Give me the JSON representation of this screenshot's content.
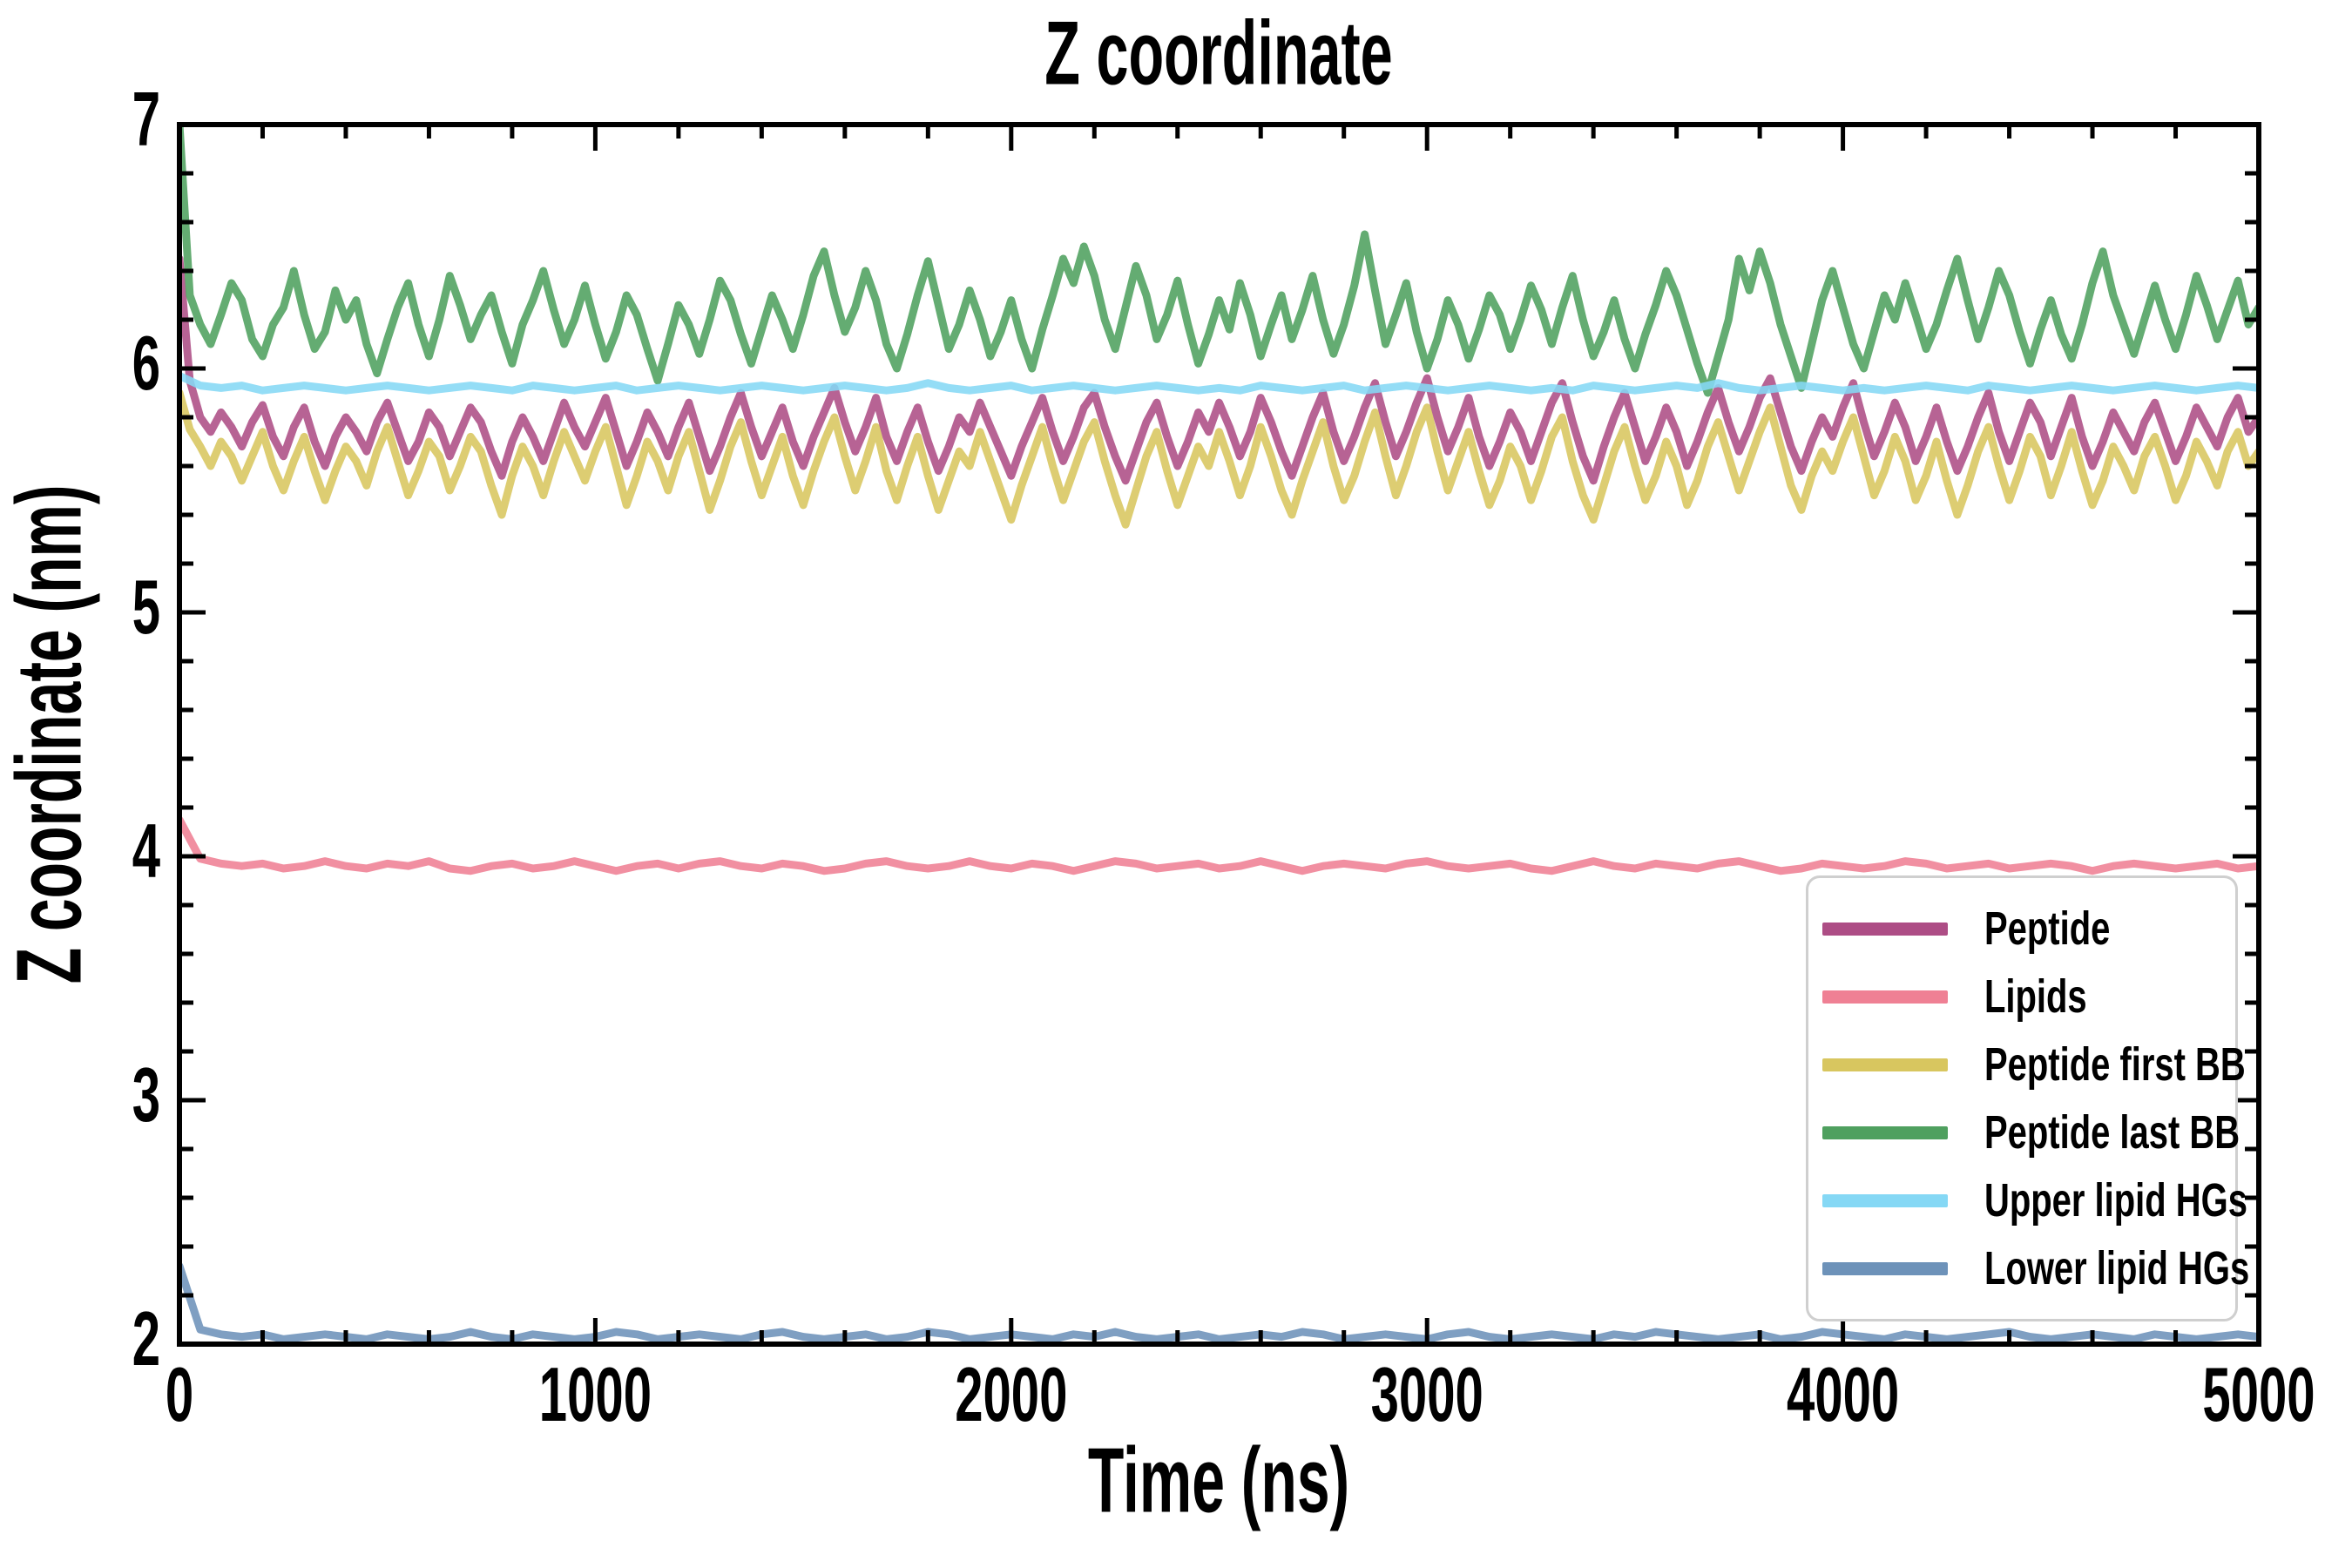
{
  "chart_data": {
    "type": "line",
    "title": "Z coordinate",
    "xlabel": "Time (ns)",
    "ylabel": "Z coordinate (nm)",
    "xlim": [
      0,
      5000
    ],
    "ylim": [
      2,
      7
    ],
    "xticks": [
      0,
      1000,
      2000,
      3000,
      4000,
      5000
    ],
    "xtick_labels": [
      "0",
      "1000",
      "2000",
      "3000",
      "4000",
      "5000"
    ],
    "yticks": [
      2,
      3,
      4,
      5,
      6,
      7
    ],
    "ytick_labels": [
      "2",
      "3",
      "4",
      "5",
      "6",
      "7"
    ],
    "x_minor_step": 200,
    "y_minor_step": 0.2,
    "grid": false,
    "legend_position": "lower right",
    "series": [
      {
        "id": "peptide",
        "name": "Peptide",
        "color": "#ad4d85",
        "x0": 0,
        "dx": 25,
        "values": [
          6.45,
          5.95,
          5.8,
          5.74,
          5.82,
          5.76,
          5.68,
          5.78,
          5.85,
          5.72,
          5.64,
          5.76,
          5.84,
          5.7,
          5.6,
          5.72,
          5.8,
          5.74,
          5.66,
          5.78,
          5.86,
          5.74,
          5.62,
          5.7,
          5.82,
          5.76,
          5.64,
          5.74,
          5.84,
          5.78,
          5.66,
          5.56,
          5.7,
          5.8,
          5.72,
          5.62,
          5.74,
          5.86,
          5.76,
          5.68,
          5.78,
          5.88,
          5.74,
          5.6,
          5.7,
          5.82,
          5.74,
          5.64,
          5.76,
          5.86,
          5.72,
          5.58,
          5.68,
          5.8,
          5.9,
          5.76,
          5.64,
          5.74,
          5.84,
          5.7,
          5.6,
          5.72,
          5.82,
          5.92,
          5.78,
          5.66,
          5.76,
          5.88,
          5.72,
          5.62,
          5.74,
          5.84,
          5.7,
          5.58,
          5.68,
          5.8,
          5.74,
          5.86,
          5.76,
          5.66,
          5.56,
          5.68,
          5.78,
          5.88,
          5.74,
          5.62,
          5.72,
          5.84,
          5.9,
          5.76,
          5.64,
          5.54,
          5.66,
          5.78,
          5.86,
          5.72,
          5.6,
          5.7,
          5.82,
          5.74,
          5.86,
          5.76,
          5.64,
          5.74,
          5.88,
          5.78,
          5.66,
          5.56,
          5.68,
          5.8,
          5.9,
          5.74,
          5.62,
          5.72,
          5.84,
          5.94,
          5.78,
          5.64,
          5.74,
          5.86,
          5.96,
          5.8,
          5.66,
          5.76,
          5.88,
          5.72,
          5.6,
          5.7,
          5.82,
          5.74,
          5.62,
          5.74,
          5.86,
          5.94,
          5.78,
          5.64,
          5.54,
          5.68,
          5.8,
          5.9,
          5.76,
          5.62,
          5.72,
          5.84,
          5.74,
          5.6,
          5.7,
          5.82,
          5.92,
          5.78,
          5.66,
          5.76,
          5.88,
          5.96,
          5.82,
          5.68,
          5.58,
          5.7,
          5.8,
          5.72,
          5.84,
          5.94,
          5.78,
          5.64,
          5.74,
          5.86,
          5.76,
          5.62,
          5.72,
          5.84,
          5.7,
          5.58,
          5.68,
          5.8,
          5.9,
          5.74,
          5.62,
          5.74,
          5.86,
          5.78,
          5.64,
          5.76,
          5.88,
          5.72,
          5.6,
          5.7,
          5.82,
          5.74,
          5.66,
          5.78,
          5.86,
          5.74,
          5.62,
          5.72,
          5.84,
          5.76,
          5.68,
          5.8,
          5.88,
          5.74,
          5.8
        ]
      },
      {
        "id": "lipids",
        "name": "Lipids",
        "color": "#ef8094",
        "x0": 0,
        "dx": 50,
        "values": [
          4.15,
          3.99,
          3.97,
          3.96,
          3.97,
          3.95,
          3.96,
          3.98,
          3.96,
          3.95,
          3.97,
          3.96,
          3.98,
          3.95,
          3.94,
          3.96,
          3.97,
          3.95,
          3.96,
          3.98,
          3.96,
          3.94,
          3.96,
          3.97,
          3.95,
          3.97,
          3.98,
          3.96,
          3.95,
          3.97,
          3.96,
          3.94,
          3.95,
          3.97,
          3.98,
          3.96,
          3.95,
          3.96,
          3.98,
          3.96,
          3.95,
          3.97,
          3.96,
          3.94,
          3.96,
          3.98,
          3.97,
          3.95,
          3.96,
          3.97,
          3.95,
          3.96,
          3.98,
          3.96,
          3.94,
          3.96,
          3.97,
          3.96,
          3.95,
          3.97,
          3.98,
          3.96,
          3.95,
          3.96,
          3.97,
          3.95,
          3.94,
          3.96,
          3.98,
          3.96,
          3.95,
          3.97,
          3.96,
          3.95,
          3.97,
          3.98,
          3.96,
          3.94,
          3.95,
          3.97,
          3.96,
          3.95,
          3.96,
          3.98,
          3.97,
          3.95,
          3.96,
          3.97,
          3.95,
          3.96,
          3.97,
          3.96,
          3.94,
          3.96,
          3.97,
          3.96,
          3.95,
          3.96,
          3.97,
          3.95,
          3.96
        ]
      },
      {
        "id": "peptide-first-bb",
        "name": "Peptide first BB",
        "color": "#d8c65f",
        "x0": 0,
        "dx": 25,
        "values": [
          5.9,
          5.75,
          5.68,
          5.6,
          5.7,
          5.64,
          5.54,
          5.64,
          5.74,
          5.6,
          5.5,
          5.62,
          5.72,
          5.58,
          5.46,
          5.58,
          5.68,
          5.62,
          5.52,
          5.66,
          5.76,
          5.62,
          5.48,
          5.58,
          5.7,
          5.64,
          5.5,
          5.6,
          5.72,
          5.66,
          5.52,
          5.4,
          5.56,
          5.68,
          5.6,
          5.48,
          5.62,
          5.74,
          5.64,
          5.54,
          5.66,
          5.76,
          5.6,
          5.44,
          5.56,
          5.7,
          5.62,
          5.5,
          5.64,
          5.74,
          5.58,
          5.42,
          5.54,
          5.68,
          5.78,
          5.62,
          5.48,
          5.6,
          5.72,
          5.56,
          5.44,
          5.58,
          5.7,
          5.8,
          5.64,
          5.5,
          5.62,
          5.76,
          5.58,
          5.46,
          5.6,
          5.72,
          5.56,
          5.42,
          5.54,
          5.66,
          5.6,
          5.74,
          5.62,
          5.5,
          5.38,
          5.52,
          5.64,
          5.76,
          5.6,
          5.46,
          5.58,
          5.7,
          5.78,
          5.62,
          5.48,
          5.36,
          5.5,
          5.64,
          5.74,
          5.58,
          5.44,
          5.56,
          5.68,
          5.6,
          5.74,
          5.62,
          5.48,
          5.6,
          5.76,
          5.64,
          5.5,
          5.4,
          5.54,
          5.66,
          5.78,
          5.6,
          5.46,
          5.56,
          5.7,
          5.82,
          5.64,
          5.48,
          5.6,
          5.74,
          5.84,
          5.66,
          5.5,
          5.62,
          5.74,
          5.58,
          5.44,
          5.54,
          5.68,
          5.6,
          5.46,
          5.58,
          5.72,
          5.8,
          5.62,
          5.48,
          5.38,
          5.52,
          5.66,
          5.76,
          5.6,
          5.46,
          5.56,
          5.7,
          5.6,
          5.44,
          5.54,
          5.68,
          5.78,
          5.64,
          5.5,
          5.62,
          5.74,
          5.84,
          5.68,
          5.52,
          5.42,
          5.56,
          5.66,
          5.58,
          5.7,
          5.8,
          5.64,
          5.48,
          5.58,
          5.72,
          5.62,
          5.46,
          5.56,
          5.7,
          5.54,
          5.4,
          5.52,
          5.66,
          5.76,
          5.6,
          5.46,
          5.58,
          5.72,
          5.64,
          5.48,
          5.6,
          5.74,
          5.58,
          5.44,
          5.54,
          5.68,
          5.6,
          5.5,
          5.64,
          5.72,
          5.6,
          5.46,
          5.56,
          5.7,
          5.62,
          5.52,
          5.66,
          5.74,
          5.6,
          5.66
        ]
      },
      {
        "id": "peptide-last-bb",
        "name": "Peptide last BB",
        "color": "#4fa05f",
        "x0": 0,
        "dx": 25,
        "values": [
          7.0,
          6.3,
          6.18,
          6.1,
          6.22,
          6.35,
          6.28,
          6.12,
          6.05,
          6.18,
          6.25,
          6.4,
          6.22,
          6.08,
          6.15,
          6.32,
          6.2,
          6.28,
          6.1,
          5.98,
          6.12,
          6.25,
          6.35,
          6.18,
          6.05,
          6.2,
          6.38,
          6.26,
          6.12,
          6.22,
          6.3,
          6.15,
          6.02,
          6.18,
          6.28,
          6.4,
          6.24,
          6.1,
          6.2,
          6.34,
          6.18,
          6.04,
          6.15,
          6.3,
          6.22,
          6.08,
          5.95,
          6.1,
          6.26,
          6.18,
          6.06,
          6.2,
          6.36,
          6.28,
          6.14,
          6.02,
          6.16,
          6.3,
          6.2,
          6.08,
          6.22,
          6.38,
          6.48,
          6.3,
          6.15,
          6.25,
          6.4,
          6.28,
          6.1,
          6.0,
          6.14,
          6.3,
          6.44,
          6.26,
          6.08,
          6.18,
          6.32,
          6.2,
          6.05,
          6.15,
          6.28,
          6.12,
          6.0,
          6.16,
          6.3,
          6.45,
          6.35,
          6.5,
          6.38,
          6.2,
          6.08,
          6.25,
          6.42,
          6.3,
          6.12,
          6.22,
          6.36,
          6.18,
          6.02,
          6.14,
          6.28,
          6.16,
          6.35,
          6.22,
          6.05,
          6.18,
          6.3,
          6.12,
          6.24,
          6.38,
          6.2,
          6.06,
          6.18,
          6.34,
          6.55,
          6.32,
          6.1,
          6.22,
          6.35,
          6.15,
          6.0,
          6.12,
          6.28,
          6.18,
          6.04,
          6.16,
          6.3,
          6.22,
          6.08,
          6.2,
          6.34,
          6.24,
          6.1,
          6.25,
          6.38,
          6.2,
          6.05,
          6.15,
          6.28,
          6.12,
          6.0,
          6.14,
          6.26,
          6.4,
          6.3,
          6.16,
          6.02,
          5.9,
          6.05,
          6.2,
          6.45,
          6.32,
          6.48,
          6.35,
          6.18,
          6.05,
          5.92,
          6.1,
          6.28,
          6.4,
          6.25,
          6.1,
          6.0,
          6.15,
          6.3,
          6.2,
          6.35,
          6.22,
          6.08,
          6.18,
          6.32,
          6.45,
          6.28,
          6.12,
          6.25,
          6.4,
          6.3,
          6.15,
          6.02,
          6.16,
          6.28,
          6.14,
          6.04,
          6.18,
          6.35,
          6.48,
          6.3,
          6.18,
          6.06,
          6.2,
          6.34,
          6.2,
          6.08,
          6.22,
          6.38,
          6.26,
          6.12,
          6.24,
          6.36,
          6.18,
          6.25
        ]
      },
      {
        "id": "upper-lipid-hgs",
        "name": "Upper lipid HGs",
        "color": "#85d8f5",
        "x0": 0,
        "dx": 50,
        "values": [
          5.97,
          5.93,
          5.92,
          5.93,
          5.91,
          5.92,
          5.93,
          5.92,
          5.91,
          5.92,
          5.93,
          5.92,
          5.91,
          5.92,
          5.93,
          5.92,
          5.91,
          5.93,
          5.92,
          5.91,
          5.92,
          5.93,
          5.91,
          5.92,
          5.93,
          5.92,
          5.91,
          5.92,
          5.93,
          5.92,
          5.91,
          5.92,
          5.93,
          5.92,
          5.91,
          5.92,
          5.94,
          5.92,
          5.91,
          5.92,
          5.93,
          5.91,
          5.92,
          5.93,
          5.92,
          5.91,
          5.92,
          5.93,
          5.92,
          5.91,
          5.92,
          5.91,
          5.93,
          5.92,
          5.91,
          5.92,
          5.93,
          5.91,
          5.92,
          5.93,
          5.92,
          5.91,
          5.92,
          5.93,
          5.92,
          5.91,
          5.92,
          5.91,
          5.93,
          5.92,
          5.91,
          5.92,
          5.93,
          5.92,
          5.94,
          5.92,
          5.91,
          5.92,
          5.93,
          5.92,
          5.91,
          5.92,
          5.91,
          5.92,
          5.93,
          5.92,
          5.91,
          5.93,
          5.92,
          5.91,
          5.92,
          5.93,
          5.92,
          5.91,
          5.92,
          5.93,
          5.92,
          5.91,
          5.92,
          5.93,
          5.92
        ]
      },
      {
        "id": "lower-lipid-hgs",
        "name": "Lower lipid HGs",
        "color": "#6d92b9",
        "x0": 0,
        "dx": 50,
        "values": [
          2.32,
          2.06,
          2.04,
          2.03,
          2.04,
          2.02,
          2.03,
          2.04,
          2.03,
          2.02,
          2.04,
          2.03,
          2.02,
          2.03,
          2.05,
          2.03,
          2.02,
          2.04,
          2.03,
          2.02,
          2.03,
          2.05,
          2.04,
          2.02,
          2.03,
          2.04,
          2.03,
          2.02,
          2.04,
          2.05,
          2.03,
          2.02,
          2.03,
          2.04,
          2.02,
          2.03,
          2.05,
          2.04,
          2.02,
          2.03,
          2.04,
          2.03,
          2.02,
          2.04,
          2.03,
          2.05,
          2.03,
          2.02,
          2.03,
          2.04,
          2.02,
          2.03,
          2.04,
          2.03,
          2.05,
          2.04,
          2.02,
          2.03,
          2.04,
          2.03,
          2.02,
          2.04,
          2.05,
          2.03,
          2.02,
          2.03,
          2.04,
          2.03,
          2.02,
          2.04,
          2.03,
          2.05,
          2.04,
          2.03,
          2.02,
          2.03,
          2.04,
          2.02,
          2.03,
          2.05,
          2.04,
          2.03,
          2.02,
          2.04,
          2.03,
          2.02,
          2.03,
          2.04,
          2.05,
          2.03,
          2.02,
          2.03,
          2.04,
          2.03,
          2.02,
          2.04,
          2.03,
          2.02,
          2.03,
          2.04,
          2.03
        ]
      }
    ]
  }
}
